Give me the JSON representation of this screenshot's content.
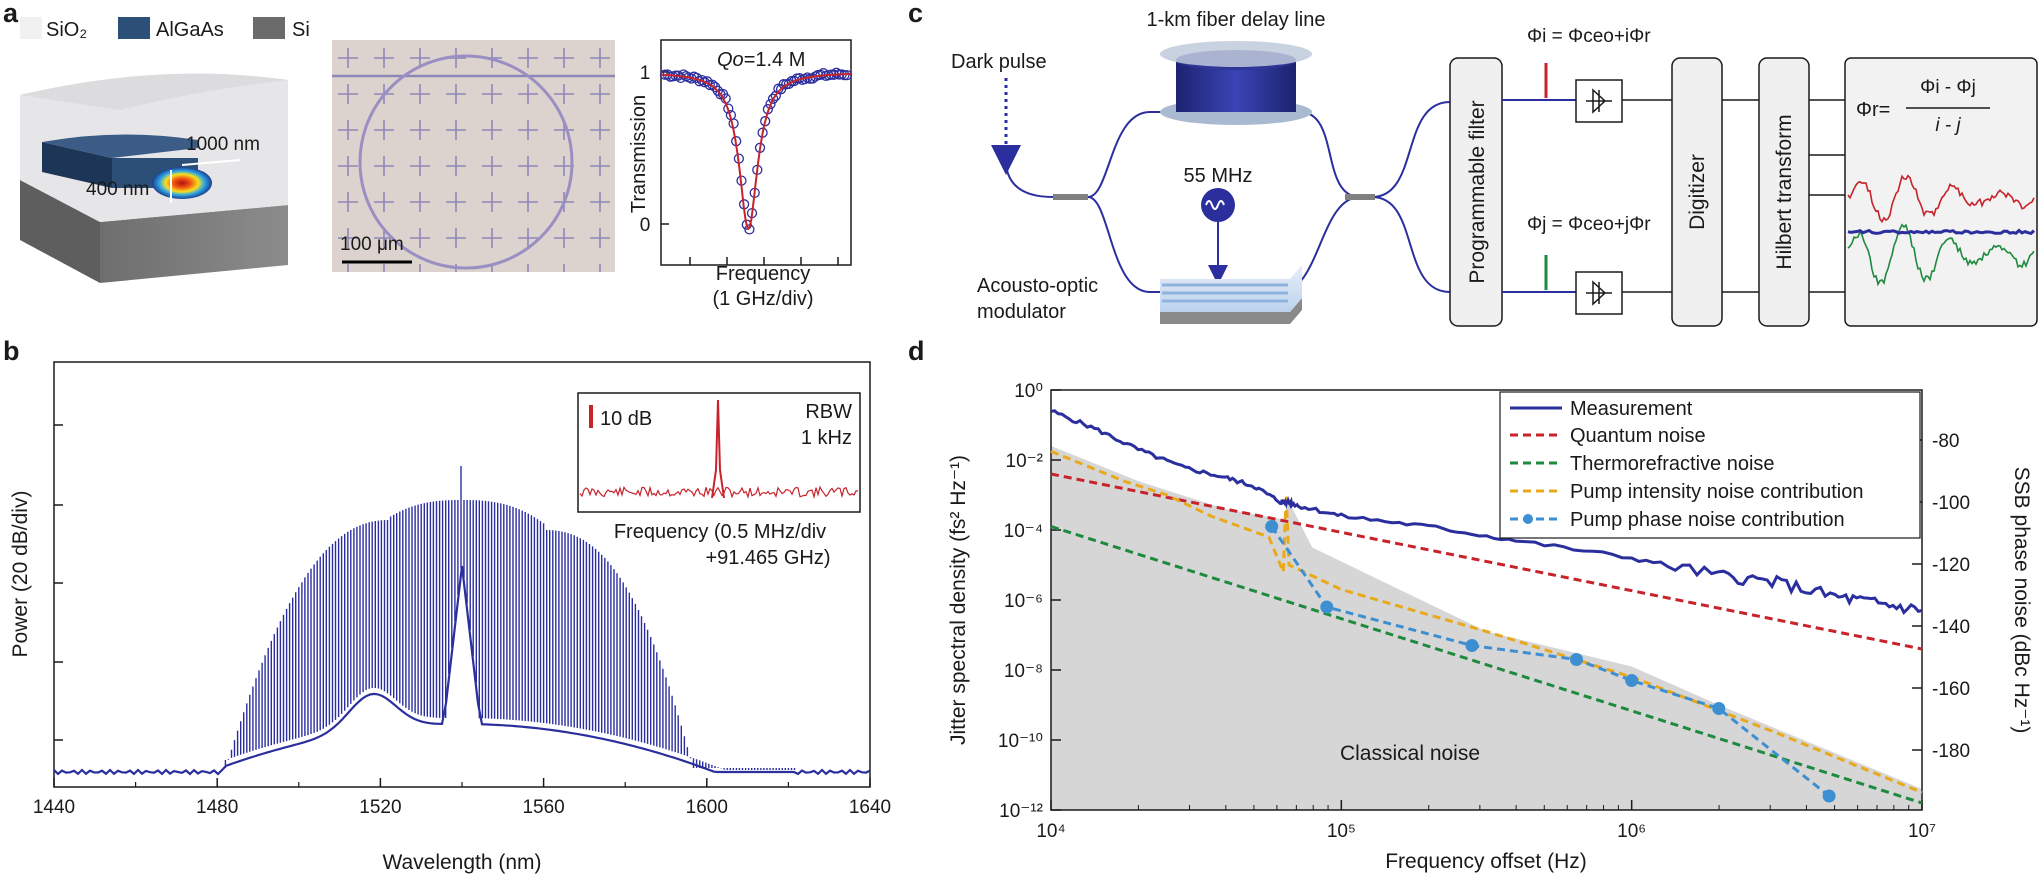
{
  "panels": {
    "a": "a",
    "b": "b",
    "c": "c",
    "d": "d"
  },
  "colors": {
    "blue": "#2b2f9e",
    "red": "#c8222b",
    "green": "#1e8a3e",
    "orange": "#e8a91c",
    "lightblue": "#3d8fd1",
    "gray": "#c8c8c8"
  },
  "a": {
    "legend": [
      "SiO₂",
      "AlGaAs",
      "Si"
    ],
    "dim_width": "1000 nm",
    "dim_height": "400 nm",
    "scalebar": "100 μm",
    "q_label_prefix": "Qo",
    "q_label_value": "=1.4 M",
    "transmission": {
      "ylabel": "Transmission",
      "xlabel_1": "Frequency",
      "xlabel_2": "(1 GHz/div)",
      "ytick_top": "1",
      "ytick_bottom": "0"
    }
  },
  "b": {
    "chart_data": {
      "type": "line",
      "title": "",
      "xlabel": "Wavelength (nm)",
      "ylabel": "Power (20 dB/div)",
      "xlim": [
        1440,
        1640
      ],
      "xticks": [
        "1440",
        "1480",
        "1520",
        "1560",
        "1600",
        "1640"
      ],
      "comb_spacing_nm": 0.75,
      "pump_wavelength_nm": 1540,
      "span_nm": [
        1482,
        1622
      ]
    },
    "inset": {
      "scale": "10 dB",
      "rbw_1": "RBW",
      "rbw_2": "1 kHz",
      "xlabel_1": "Frequency (0.5 MHz/div",
      "xlabel_2": "+91.465 GHz)"
    }
  },
  "c": {
    "dark_pulse": "Dark pulse",
    "delay_line": "1-km fiber delay line",
    "rf": "55 MHz",
    "aom_1": "Acousto-optic",
    "aom_2": "modulator",
    "filter": "Programmable filter",
    "digitizer": "Digitizer",
    "hilbert": "Hilbert transform",
    "phi_i": "Φi = Φceo+iΦr",
    "phi_j": "Φj = Φceo+jΦr",
    "phi_r_lhs": "Φr=",
    "phi_r_num": "Φi - Φj",
    "phi_r_den": "i - j"
  },
  "d": {
    "chart_data": {
      "type": "line",
      "xlabel": "Frequency offset (Hz)",
      "ylabel_left": "Jitter spectral density  (fs² Hz⁻¹)",
      "ylabel_right": "SSB phase noise  (dBc Hz⁻¹)",
      "xscale": "log",
      "xlim": [
        10000,
        10000000
      ],
      "ylim_log10": [
        -12,
        0
      ],
      "xticks": [
        "10⁴",
        "10⁵",
        "10⁶",
        "10⁷"
      ],
      "yticks_left": [
        "10⁰",
        "10⁻²",
        "10⁻⁴",
        "10⁻⁶",
        "10⁻⁸",
        "10⁻¹⁰",
        "10⁻¹²"
      ],
      "yticks_right": [
        "-80",
        "-100",
        "-120",
        "-140",
        "-160",
        "-180"
      ],
      "annotation": "Classical noise",
      "series": [
        {
          "name": "Measurement",
          "points_log10": [
            [
              4.0,
              -0.6
            ],
            [
              4.15,
              -1.1
            ],
            [
              4.3,
              -1.7
            ],
            [
              4.45,
              -2.2
            ],
            [
              4.6,
              -2.5
            ],
            [
              4.7,
              -2.75
            ],
            [
              4.79,
              -3.2
            ],
            [
              4.82,
              -3.2
            ],
            [
              4.85,
              -3.3
            ],
            [
              5.0,
              -3.6
            ],
            [
              5.3,
              -3.9
            ],
            [
              5.6,
              -4.3
            ],
            [
              6.0,
              -4.8
            ],
            [
              6.3,
              -5.3
            ],
            [
              6.5,
              -5.5
            ],
            [
              6.7,
              -5.9
            ],
            [
              6.85,
              -6.1
            ],
            [
              7.0,
              -6.3
            ]
          ]
        },
        {
          "name": "Quantum noise",
          "points_log10": [
            [
              4.0,
              -2.4
            ],
            [
              7.0,
              -7.4
            ]
          ]
        },
        {
          "name": "Thermorefractive noise",
          "points_log10": [
            [
              4.0,
              -3.9
            ],
            [
              7.0,
              -11.8
            ]
          ]
        },
        {
          "name": "Pump intensity noise contribution",
          "points_log10": [
            [
              4.0,
              -1.75
            ],
            [
              4.25,
              -2.6
            ],
            [
              4.4,
              -3.0
            ],
            [
              4.55,
              -3.6
            ],
            [
              4.75,
              -4.2
            ],
            [
              4.8,
              -5.2
            ],
            [
              4.81,
              -3.0
            ],
            [
              4.82,
              -5.0
            ],
            [
              5.0,
              -5.7
            ],
            [
              5.5,
              -6.9
            ],
            [
              6.0,
              -8.2
            ],
            [
              6.5,
              -9.8
            ],
            [
              7.0,
              -11.5
            ]
          ]
        },
        {
          "name": "Pump phase noise contribution",
          "points_log10": [
            [
              4.76,
              -3.9
            ],
            [
              4.95,
              -6.2
            ],
            [
              5.45,
              -7.3
            ],
            [
              5.81,
              -7.7
            ],
            [
              6.0,
              -8.3
            ],
            [
              6.3,
              -9.1
            ],
            [
              6.68,
              -11.6
            ]
          ]
        }
      ]
    }
  }
}
